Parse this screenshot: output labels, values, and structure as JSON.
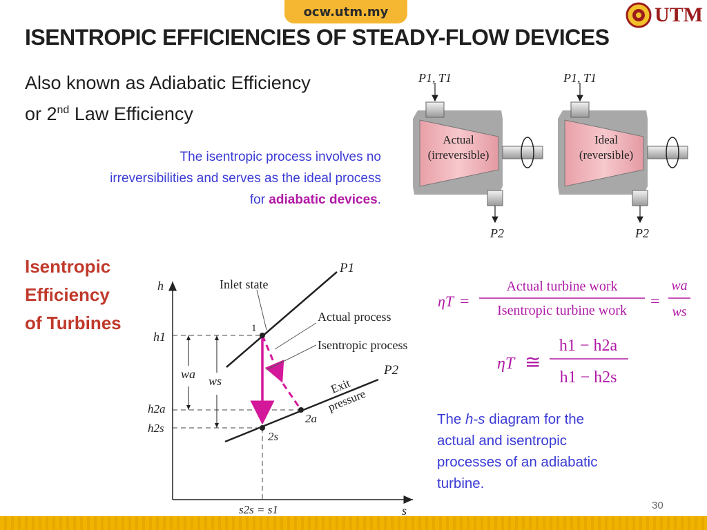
{
  "header": {
    "tab_label": "ocw.utm.my",
    "logo_text": "UTM"
  },
  "title": "ISENTROPIC EFFICIENCIES OF STEADY-FLOW DEVICES",
  "subtitle": {
    "line1": "Also known as Adiabatic Efficiency",
    "line2_pre": "or 2",
    "line2_sup": "nd",
    "line2_post": " Law Efficiency"
  },
  "note": {
    "text_before": "The isentropic process involves no irreversibilities and serves as the ideal process for ",
    "emphasis": "adiabatic devices",
    "text_after": "."
  },
  "section_heading": [
    "Isentropic",
    "Efficiency",
    "of Turbines"
  ],
  "turbines": [
    {
      "inlet": "P1, T1",
      "label_line1": "Actual",
      "label_line2": "(irreversible)",
      "outlet": "P2"
    },
    {
      "inlet": "P1, T1",
      "label_line1": "Ideal",
      "label_line2": "(reversible)",
      "outlet": "P2"
    }
  ],
  "hs_diagram": {
    "h_axis": "h",
    "s_axis": "s",
    "h1": "h1",
    "h2a": "h2a",
    "h2s": "h2s",
    "wa": "wa",
    "ws": "ws",
    "s_label": "s2s = s1",
    "inlet_state": "Inlet state",
    "actual_process": "Actual process",
    "isentropic_process": "Isentropic process",
    "exit_pressure_1": "Exit",
    "exit_pressure_2": "pressure",
    "p1": "P1",
    "p2": "P2",
    "pt1": "1",
    "pt2a": "2a",
    "pt2s": "2s",
    "colors": {
      "isentropic": "#d4189a",
      "actual": "#d4189a"
    }
  },
  "equations": {
    "eta_t": "ηT",
    "numerator": "Actual turbine work",
    "denominator": "Isentropic turbine work",
    "wa": "wa",
    "ws": "ws",
    "approx_num": "h1 − h2a",
    "approx_den": "h1 − h2s"
  },
  "caption": {
    "pre": "The ",
    "italic": "h-s",
    "post": " diagram for the actual and isentropic processes of an adiabatic turbine."
  },
  "page_number": "30"
}
